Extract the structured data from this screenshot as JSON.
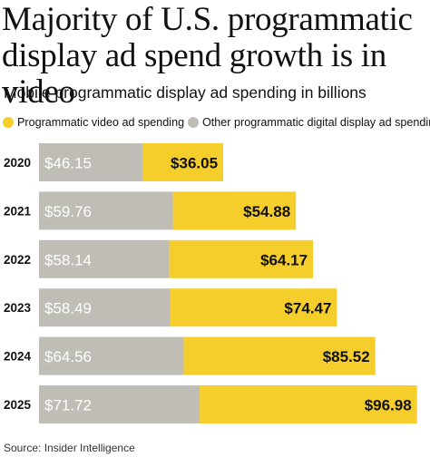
{
  "title": "Majority of U.S. programmatic display ad spend growth is in video",
  "subtitle": "Mobile programmatic display ad spending in billions",
  "source": "Source: Insider Intelligence",
  "colors": {
    "video": "#f5ce2b",
    "other": "#bfbdb6",
    "label_light": "#ffffff",
    "label_dark": "#111111"
  },
  "chart_data": {
    "type": "bar",
    "orientation": "horizontal",
    "stacked": true,
    "categories": [
      "2020",
      "2021",
      "2022",
      "2023",
      "2024",
      "2025"
    ],
    "series": [
      {
        "name": "Other programmatic digital display ad spending",
        "values": [
          46.15,
          59.76,
          58.14,
          58.49,
          64.56,
          71.72
        ],
        "labels": [
          "$46.15",
          "$59.76",
          "$58.14",
          "$58.49",
          "$64.56",
          "$71.72"
        ]
      },
      {
        "name": "Programmatic video ad spending",
        "values": [
          36.05,
          54.88,
          64.17,
          74.47,
          85.52,
          96.98
        ],
        "labels": [
          "$36.05",
          "$54.88",
          "$64.17",
          "$74.47",
          "$85.52",
          "$96.98"
        ]
      }
    ],
    "legend": [
      {
        "label": "Programmatic video ad spending",
        "color": "#f5ce2b"
      },
      {
        "label": "Other programmatic digital display ad spending",
        "color": "#bfbdb6"
      }
    ],
    "legend_position": "top",
    "grid": false
  }
}
